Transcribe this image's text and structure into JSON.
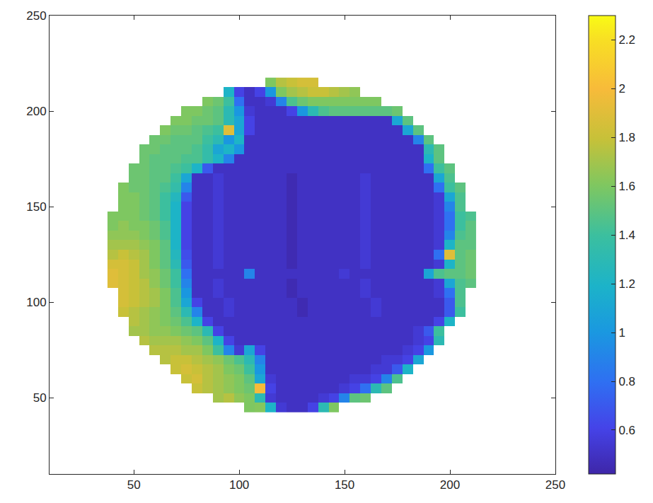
{
  "chart_data": {
    "type": "heatmap",
    "x": [
      40,
      45,
      50,
      55,
      60,
      65,
      70,
      75,
      80,
      85,
      90,
      95,
      100,
      105,
      110,
      115,
      120,
      125,
      130,
      135,
      140,
      145,
      150,
      155,
      160,
      165,
      170,
      175,
      180,
      185,
      190,
      195,
      200,
      205,
      210
    ],
    "y": [
      45,
      50,
      55,
      60,
      65,
      70,
      75,
      80,
      85,
      90,
      95,
      100,
      105,
      110,
      115,
      120,
      125,
      130,
      135,
      140,
      145,
      150,
      155,
      160,
      165,
      170,
      175,
      180,
      185,
      190,
      195,
      200,
      205,
      210,
      215
    ],
    "cells": [
      [
        null,
        null,
        null,
        null,
        null,
        null,
        null,
        null,
        null,
        null,
        null,
        null,
        null,
        1.6,
        1.62,
        1.2,
        0.55,
        0.5,
        0.5,
        0.6,
        1.3,
        1.6,
        null,
        null,
        null,
        null,
        null,
        null,
        null,
        null,
        null,
        null,
        null,
        null,
        null
      ],
      [
        null,
        null,
        null,
        null,
        null,
        null,
        null,
        null,
        null,
        null,
        1.7,
        1.75,
        1.65,
        1.6,
        1.3,
        0.55,
        0.5,
        0.5,
        0.5,
        0.5,
        0.55,
        0.6,
        0.9,
        1.5,
        1.55,
        null,
        null,
        null,
        null,
        null,
        null,
        null,
        null,
        null,
        null
      ],
      [
        null,
        null,
        null,
        null,
        null,
        null,
        null,
        null,
        1.8,
        1.75,
        1.7,
        1.65,
        1.6,
        1.55,
        2,
        0.6,
        0.5,
        0.5,
        0.5,
        0.5,
        0.5,
        0.5,
        0.55,
        0.6,
        0.8,
        1.3,
        1.5,
        null,
        null,
        null,
        null,
        null,
        null,
        null,
        null
      ],
      [
        null,
        null,
        null,
        null,
        null,
        null,
        null,
        1.8,
        1.85,
        1.75,
        1.7,
        1.65,
        1.6,
        1.5,
        1.1,
        0.55,
        0.5,
        0.5,
        0.5,
        0.5,
        0.5,
        0.5,
        0.5,
        0.55,
        0.55,
        0.6,
        0.9,
        1.45,
        null,
        null,
        null,
        null,
        null,
        null,
        null
      ],
      [
        null,
        null,
        null,
        null,
        null,
        null,
        1.8,
        1.85,
        1.8,
        1.75,
        1.7,
        1.6,
        1.55,
        1.4,
        1,
        0.5,
        0.5,
        0.5,
        0.5,
        0.5,
        0.5,
        0.5,
        0.5,
        0.5,
        0.5,
        0.55,
        0.55,
        0.7,
        1.2,
        null,
        null,
        null,
        null,
        null,
        null
      ],
      [
        null,
        null,
        null,
        null,
        null,
        1.75,
        1.8,
        1.8,
        1.75,
        1.7,
        1.65,
        1.55,
        1.45,
        1.3,
        0.9,
        0.5,
        0.5,
        0.5,
        0.5,
        0.5,
        0.5,
        0.5,
        0.5,
        0.5,
        0.5,
        0.5,
        0.55,
        0.55,
        0.6,
        1.1,
        null,
        null,
        null,
        null,
        null
      ],
      [
        null,
        null,
        null,
        null,
        1.75,
        1.75,
        1.75,
        1.7,
        1.7,
        1.6,
        1.4,
        0.9,
        0.55,
        1.1,
        0.6,
        0.5,
        0.5,
        0.5,
        0.5,
        0.5,
        0.5,
        0.5,
        0.5,
        0.5,
        0.5,
        0.5,
        0.5,
        0.5,
        0.55,
        0.6,
        1,
        null,
        null,
        null,
        null
      ],
      [
        null,
        null,
        null,
        1.75,
        1.7,
        1.7,
        1.7,
        1.65,
        1.6,
        1.5,
        1.2,
        0.6,
        0.5,
        0.5,
        0.5,
        0.5,
        0.5,
        0.5,
        0.5,
        0.5,
        0.5,
        0.5,
        0.5,
        0.5,
        0.5,
        0.5,
        0.5,
        0.5,
        0.5,
        0.55,
        0.6,
        1.3,
        null,
        null,
        null
      ],
      [
        null,
        null,
        1.7,
        1.7,
        1.65,
        1.65,
        1.6,
        1.55,
        1.5,
        1.3,
        0.6,
        0.5,
        0.5,
        0.5,
        0.5,
        0.5,
        0.5,
        0.5,
        0.5,
        0.5,
        0.5,
        0.5,
        0.5,
        0.5,
        0.5,
        0.5,
        0.5,
        0.5,
        0.5,
        0.55,
        0.7,
        1.4,
        null,
        null
      ],
      [
        null,
        null,
        1.75,
        1.7,
        1.65,
        1.6,
        1.55,
        1.45,
        1.2,
        0.6,
        0.5,
        0.5,
        0.5,
        0.5,
        0.5,
        0.5,
        0.5,
        0.5,
        0.5,
        0.5,
        0.5,
        0.5,
        0.5,
        0.5,
        0.5,
        0.5,
        0.5,
        0.5,
        0.5,
        0.5,
        0.5,
        0.6,
        1.2,
        null,
        null
      ],
      [
        null,
        1.8,
        1.75,
        1.7,
        1.65,
        1.6,
        1.5,
        1.3,
        0.9,
        0.5,
        0.5,
        0.55,
        0.5,
        0.5,
        0.5,
        0.5,
        0.5,
        0.5,
        0.45,
        0.5,
        0.5,
        0.5,
        0.5,
        0.5,
        0.5,
        0.55,
        0.5,
        0.5,
        0.5,
        0.5,
        0.5,
        0.5,
        0.7,
        1.4,
        null
      ],
      [
        null,
        1.85,
        1.8,
        1.75,
        1.7,
        1.6,
        1.45,
        1.1,
        0.6,
        0.5,
        0.5,
        0.55,
        0.5,
        0.5,
        0.5,
        0.5,
        0.5,
        0.5,
        0.45,
        0.5,
        0.5,
        0.5,
        0.5,
        0.5,
        0.5,
        0.55,
        0.5,
        0.5,
        0.5,
        0.5,
        0.5,
        0.5,
        0.7,
        1.45,
        null
      ],
      [
        null,
        1.85,
        1.8,
        1.75,
        1.7,
        1.6,
        1.45,
        1,
        0.5,
        0.5,
        0.55,
        0.5,
        0.5,
        0.5,
        0.5,
        0.5,
        0.5,
        0.45,
        0.5,
        0.5,
        0.5,
        0.5,
        0.5,
        0.5,
        0.55,
        0.5,
        0.5,
        0.5,
        0.5,
        0.5,
        0.5,
        0.55,
        0.8,
        1.45,
        null
      ],
      [
        1.9,
        1.85,
        1.8,
        1.75,
        1.65,
        1.55,
        1.4,
        0.9,
        0.5,
        0.5,
        0.55,
        0.5,
        0.5,
        0.5,
        0.5,
        0.5,
        0.5,
        0.45,
        0.5,
        0.5,
        0.5,
        0.5,
        0.5,
        0.5,
        0.55,
        0.5,
        0.5,
        0.5,
        0.5,
        0.5,
        0.5,
        0.55,
        1.1,
        1.45,
        1.5
      ],
      [
        1.9,
        1.85,
        1.8,
        1.7,
        1.65,
        1.55,
        1.4,
        0.8,
        0.5,
        0.5,
        0.5,
        0.5,
        0.5,
        0.9,
        0.5,
        0.5,
        0.5,
        0.5,
        0.5,
        0.5,
        0.5,
        0.5,
        0.55,
        0.5,
        0.5,
        0.5,
        0.5,
        0.5,
        0.5,
        0.5,
        1.1,
        1.45,
        1.5,
        1.5,
        1.55
      ],
      [
        1.85,
        1.85,
        1.8,
        1.7,
        1.6,
        1.5,
        1.3,
        0.7,
        0.5,
        0.5,
        0.55,
        0.5,
        0.5,
        0.5,
        0.5,
        0.5,
        0.5,
        0.45,
        0.5,
        0.5,
        0.5,
        0.5,
        0.5,
        0.5,
        0.55,
        0.5,
        0.5,
        0.5,
        0.5,
        0.5,
        0.5,
        0.55,
        1.2,
        1.5,
        1.55
      ],
      [
        1.75,
        1.8,
        1.75,
        1.7,
        1.6,
        1.5,
        1.25,
        0.65,
        0.5,
        0.5,
        0.55,
        0.5,
        0.5,
        0.5,
        0.5,
        0.5,
        0.5,
        0.45,
        0.5,
        0.5,
        0.5,
        0.5,
        0.5,
        0.5,
        0.55,
        0.5,
        0.5,
        0.5,
        0.5,
        0.5,
        0.5,
        0.8,
        1.9,
        1.5,
        1.55
      ],
      [
        1.7,
        1.7,
        1.7,
        1.65,
        1.6,
        1.5,
        1.2,
        0.6,
        0.5,
        0.5,
        0.55,
        0.5,
        0.5,
        0.5,
        0.5,
        0.5,
        0.5,
        0.45,
        0.5,
        0.5,
        0.5,
        0.5,
        0.5,
        0.5,
        0.55,
        0.5,
        0.5,
        0.5,
        0.5,
        0.5,
        0.5,
        0.55,
        1.2,
        1.5,
        1.5
      ],
      [
        1.65,
        1.65,
        1.65,
        1.6,
        1.55,
        1.45,
        1.2,
        0.6,
        0.5,
        0.5,
        0.55,
        0.5,
        0.5,
        0.5,
        0.5,
        0.5,
        0.5,
        0.45,
        0.5,
        0.5,
        0.5,
        0.5,
        0.5,
        0.5,
        0.55,
        0.5,
        0.5,
        0.5,
        0.5,
        0.5,
        0.5,
        0.55,
        0.9,
        1.45,
        1.5
      ],
      [
        1.6,
        1.65,
        1.6,
        1.6,
        1.55,
        1.45,
        1.2,
        0.6,
        0.5,
        0.5,
        0.55,
        0.5,
        0.5,
        0.5,
        0.5,
        0.5,
        0.5,
        0.45,
        0.5,
        0.5,
        0.5,
        0.5,
        0.5,
        0.5,
        0.55,
        0.5,
        0.5,
        0.5,
        0.5,
        0.5,
        0.5,
        0.55,
        0.8,
        1.4,
        1.5
      ],
      [
        1.6,
        1.6,
        1.6,
        1.55,
        1.5,
        1.4,
        1.2,
        0.6,
        0.5,
        0.5,
        0.55,
        0.5,
        0.5,
        0.5,
        0.5,
        0.5,
        0.5,
        0.45,
        0.5,
        0.5,
        0.5,
        0.5,
        0.5,
        0.5,
        0.55,
        0.5,
        0.5,
        0.5,
        0.5,
        0.5,
        0.5,
        0.55,
        0.8,
        1.4,
        1.45
      ],
      [
        null,
        1.6,
        1.6,
        1.55,
        1.5,
        1.4,
        1.2,
        0.6,
        0.5,
        0.5,
        0.55,
        0.5,
        0.5,
        0.5,
        0.5,
        0.5,
        0.5,
        0.45,
        0.5,
        0.5,
        0.5,
        0.5,
        0.5,
        0.5,
        0.55,
        0.5,
        0.5,
        0.5,
        0.5,
        0.5,
        0.5,
        0.55,
        0.9,
        1.45,
        null
      ],
      [
        null,
        1.6,
        1.6,
        1.55,
        1.5,
        1.4,
        1.25,
        0.7,
        0.5,
        0.5,
        0.55,
        0.5,
        0.5,
        0.5,
        0.5,
        0.5,
        0.5,
        0.45,
        0.5,
        0.5,
        0.5,
        0.5,
        0.5,
        0.5,
        0.55,
        0.5,
        0.5,
        0.5,
        0.5,
        0.5,
        0.5,
        0.55,
        1.1,
        1.45,
        null
      ],
      [
        null,
        1.6,
        1.55,
        1.55,
        1.5,
        1.45,
        1.35,
        0.9,
        0.5,
        0.5,
        0.55,
        0.5,
        0.5,
        0.5,
        0.5,
        0.5,
        0.5,
        0.45,
        0.5,
        0.5,
        0.5,
        0.5,
        0.5,
        0.5,
        0.55,
        0.5,
        0.5,
        0.5,
        0.5,
        0.5,
        0.5,
        0.8,
        1.4,
        1.5,
        null
      ],
      [
        null,
        null,
        1.55,
        1.55,
        1.5,
        1.5,
        1.4,
        1.1,
        0.5,
        0.5,
        0.55,
        0.5,
        0.5,
        0.5,
        0.5,
        0.5,
        0.5,
        0.45,
        0.5,
        0.5,
        0.5,
        0.5,
        0.5,
        0.5,
        0.55,
        0.5,
        0.5,
        0.5,
        0.5,
        0.5,
        0.5,
        1.1,
        1.45,
        null,
        null
      ],
      [
        null,
        null,
        1.55,
        1.55,
        1.5,
        1.5,
        1.45,
        1.4,
        1.2,
        0.7,
        0.5,
        0.5,
        0.5,
        0.5,
        0.5,
        0.5,
        0.5,
        0.5,
        0.5,
        0.5,
        0.5,
        0.5,
        0.5,
        0.5,
        0.5,
        0.5,
        0.5,
        0.5,
        0.5,
        0.5,
        0.8,
        1.4,
        1.5,
        null,
        null
      ],
      [
        null,
        null,
        null,
        1.55,
        1.5,
        1.5,
        1.5,
        1.45,
        1.45,
        1.35,
        1.2,
        0.9,
        0.5,
        0.5,
        0.5,
        0.5,
        0.5,
        0.5,
        0.5,
        0.5,
        0.5,
        0.5,
        0.5,
        0.5,
        0.5,
        0.5,
        0.5,
        0.5,
        0.5,
        0.5,
        1.2,
        1.5,
        null,
        null,
        null
      ],
      [
        null,
        null,
        null,
        1.55,
        1.55,
        1.5,
        1.5,
        1.5,
        1.45,
        1.35,
        1.1,
        1.2,
        1,
        0.5,
        0.5,
        0.5,
        0.5,
        0.5,
        0.5,
        0.5,
        0.5,
        0.5,
        0.5,
        0.5,
        0.5,
        0.5,
        0.5,
        0.5,
        0.5,
        0.5,
        1.3,
        1.5,
        null,
        null,
        null
      ],
      [
        null,
        null,
        null,
        null,
        1.55,
        1.55,
        1.5,
        1.5,
        1.5,
        1.4,
        1.3,
        1,
        1.2,
        0.5,
        0.5,
        0.5,
        0.5,
        0.5,
        0.5,
        0.5,
        0.5,
        0.5,
        0.5,
        0.5,
        0.5,
        0.5,
        0.5,
        0.5,
        0.5,
        0.9,
        1.5,
        null,
        null,
        null,
        null
      ],
      [
        null,
        null,
        null,
        null,
        null,
        1.6,
        1.55,
        1.55,
        1.5,
        1.45,
        1.4,
        1.9,
        1.1,
        0.6,
        0.5,
        0.5,
        0.5,
        0.5,
        0.5,
        0.5,
        0.5,
        0.5,
        0.5,
        0.5,
        0.5,
        0.5,
        0.5,
        0.5,
        1.1,
        1.5,
        null,
        null,
        null,
        null,
        null
      ],
      [
        null,
        null,
        null,
        null,
        null,
        null,
        1.6,
        1.6,
        1.55,
        1.55,
        1.5,
        1.3,
        1.1,
        0.6,
        0.5,
        0.5,
        0.5,
        0.5,
        0.5,
        0.5,
        0.5,
        0.5,
        0.5,
        0.5,
        0.5,
        0.5,
        0.5,
        1.1,
        1.5,
        null,
        null,
        null,
        null,
        null,
        null
      ],
      [
        null,
        null,
        null,
        null,
        null,
        null,
        null,
        1.6,
        1.6,
        1.55,
        1.5,
        1.3,
        1,
        0.55,
        0.5,
        0.5,
        0.5,
        0.6,
        1,
        1.3,
        1.45,
        1.5,
        1.5,
        1.5,
        1.5,
        1.5,
        1.5,
        1.55,
        null,
        null,
        null,
        null,
        null,
        null,
        null
      ],
      [
        null,
        null,
        null,
        null,
        null,
        null,
        null,
        null,
        null,
        1.6,
        1.55,
        1.4,
        0.8,
        0.5,
        0.5,
        0.55,
        0.9,
        1.45,
        1.55,
        1.6,
        1.6,
        1.6,
        1.6,
        1.6,
        1.6,
        1.6,
        null,
        null,
        null,
        null,
        null,
        null,
        null,
        null,
        null
      ],
      [
        null,
        null,
        null,
        null,
        null,
        null,
        null,
        null,
        null,
        null,
        null,
        1.2,
        0.6,
        0.5,
        0.6,
        1,
        1.6,
        1.7,
        1.75,
        1.8,
        1.8,
        1.75,
        1.7,
        1.65,
        null,
        null,
        null,
        null,
        null,
        null,
        null,
        null,
        null,
        null,
        null
      ],
      [
        null,
        null,
        null,
        null,
        null,
        null,
        null,
        null,
        null,
        null,
        null,
        null,
        null,
        null,
        null,
        1.6,
        1.75,
        1.8,
        1.85,
        1.85,
        null,
        null,
        null,
        null,
        null,
        null,
        null,
        null,
        null,
        null,
        null,
        null,
        null,
        null,
        null
      ]
    ],
    "xlim": [
      10,
      250
    ],
    "ylim": [
      10,
      250
    ],
    "xticks": [
      50,
      100,
      150,
      200,
      250
    ],
    "yticks": [
      50,
      100,
      150,
      200,
      250
    ],
    "colorbar_range": [
      0.42,
      2.3
    ],
    "colorbar_ticks": [
      0.6,
      0.8,
      1,
      1.2,
      1.4,
      1.6,
      1.8,
      2,
      2.2
    ],
    "grid": false
  }
}
